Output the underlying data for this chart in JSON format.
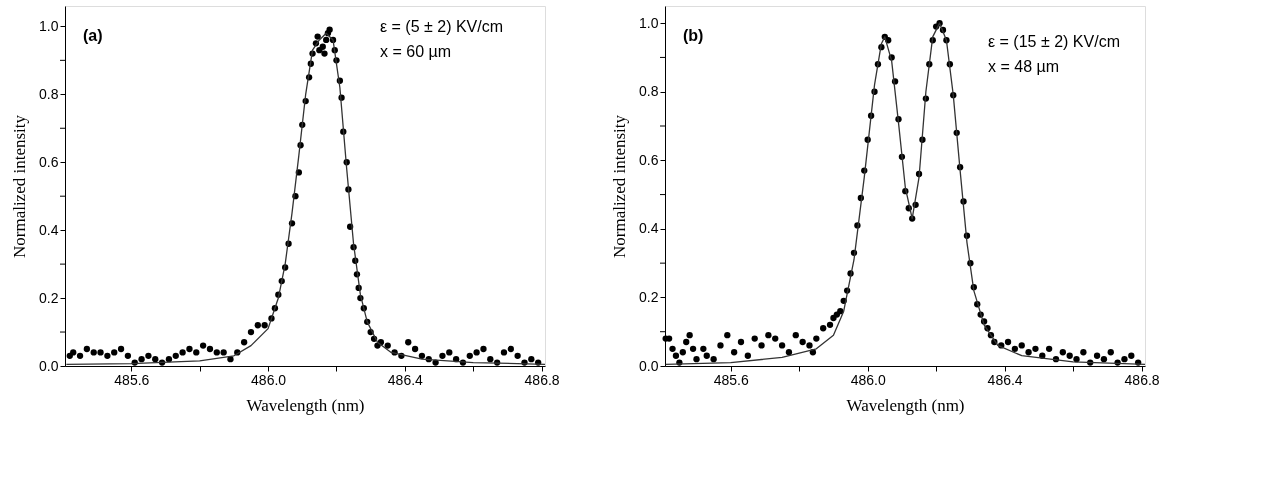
{
  "chart_data": [
    {
      "type": "scatter",
      "xlabel": "Wavelength (nm)",
      "ylabel": "Normalized intensity",
      "annotations": [
        "(a)",
        "ε = (5 ± 2) KV/cm",
        "x = 60 µm"
      ],
      "xlim": [
        485.406,
        486.81
      ],
      "ylim": [
        0,
        1.06
      ],
      "xticks": [
        485.6,
        {
          "value": 485.8,
          "label": null
        },
        {
          "value": 486.0,
          "label": "486.0"
        },
        {
          "value": 486.2,
          "label": null
        },
        486.4,
        {
          "value": 486.6,
          "label": null
        },
        486.8
      ],
      "yticks": [
        {
          "value": 0,
          "label": "0.0"
        },
        {
          "value": 0.1,
          "label": null
        },
        0.2,
        {
          "value": 0.3,
          "label": null
        },
        0.4,
        {
          "value": 0.5,
          "label": null
        },
        0.6,
        {
          "value": 0.7,
          "label": null
        },
        0.8,
        {
          "value": 0.9,
          "label": null
        },
        {
          "value": 1,
          "label": "1.0"
        }
      ],
      "grid": false,
      "legend": false,
      "series": [
        {
          "color": "#000000",
          "marker": "circle",
          "x": [
            485.42,
            485.43,
            485.45,
            485.47,
            485.49,
            485.51,
            485.53,
            485.55,
            485.57,
            485.59,
            485.61,
            485.63,
            485.65,
            485.67,
            485.69,
            485.71,
            485.73,
            485.75,
            485.77,
            485.79,
            485.81,
            485.83,
            485.85,
            485.87,
            485.89,
            485.91,
            485.93,
            485.95,
            485.97,
            485.99,
            486.01,
            486.02,
            486.03,
            486.04,
            486.05,
            486.06,
            486.07,
            486.08,
            486.09,
            486.095,
            486.1,
            486.11,
            486.12,
            486.125,
            486.13,
            486.14,
            486.145,
            486.15,
            486.16,
            486.165,
            486.17,
            486.175,
            486.18,
            486.19,
            486.195,
            486.2,
            486.21,
            486.215,
            486.22,
            486.23,
            486.235,
            486.24,
            486.25,
            486.255,
            486.26,
            486.265,
            486.27,
            486.28,
            486.29,
            486.3,
            486.31,
            486.32,
            486.33,
            486.35,
            486.37,
            486.39,
            486.41,
            486.43,
            486.45,
            486.47,
            486.49,
            486.51,
            486.53,
            486.55,
            486.57,
            486.59,
            486.61,
            486.63,
            486.65,
            486.67,
            486.69,
            486.71,
            486.73,
            486.75,
            486.77,
            486.79
          ],
          "values": [
            0.03,
            0.04,
            0.03,
            0.05,
            0.04,
            0.04,
            0.03,
            0.04,
            0.05,
            0.03,
            0.01,
            0.02,
            0.03,
            0.02,
            0.01,
            0.02,
            0.03,
            0.04,
            0.05,
            0.04,
            0.06,
            0.05,
            0.04,
            0.04,
            0.02,
            0.04,
            0.07,
            0.1,
            0.12,
            0.12,
            0.14,
            0.17,
            0.21,
            0.25,
            0.29,
            0.36,
            0.42,
            0.5,
            0.57,
            0.65,
            0.71,
            0.78,
            0.85,
            0.89,
            0.92,
            0.95,
            0.97,
            0.93,
            0.94,
            0.92,
            0.96,
            0.98,
            0.99,
            0.96,
            0.93,
            0.9,
            0.84,
            0.79,
            0.69,
            0.6,
            0.52,
            0.41,
            0.35,
            0.31,
            0.27,
            0.23,
            0.2,
            0.17,
            0.13,
            0.1,
            0.08,
            0.06,
            0.07,
            0.06,
            0.04,
            0.03,
            0.07,
            0.05,
            0.03,
            0.02,
            0.01,
            0.03,
            0.04,
            0.02,
            0.01,
            0.03,
            0.04,
            0.05,
            0.02,
            0.01,
            0.04,
            0.05,
            0.03,
            0.01,
            0.02,
            0.01
          ]
        },
        {
          "type": "line",
          "color": "#333333",
          "x": [
            485.41,
            485.6,
            485.8,
            485.9,
            485.95,
            486.0,
            486.03,
            486.05,
            486.07,
            486.09,
            486.11,
            486.13,
            486.15,
            486.17,
            486.19,
            486.21,
            486.23,
            486.25,
            486.27,
            486.29,
            486.32,
            486.36,
            486.45,
            486.6,
            486.81
          ],
          "values": [
            0.005,
            0.007,
            0.015,
            0.03,
            0.06,
            0.11,
            0.2,
            0.3,
            0.45,
            0.62,
            0.8,
            0.93,
            0.96,
            0.98,
            0.96,
            0.82,
            0.58,
            0.36,
            0.21,
            0.13,
            0.07,
            0.04,
            0.02,
            0.01,
            0.005
          ]
        }
      ]
    },
    {
      "type": "scatter",
      "xlabel": "Wavelength (nm)",
      "ylabel": "Normalized intensity",
      "annotations": [
        "(b)",
        "ε = (15 ± 2) KV/cm",
        "x = 48 µm"
      ],
      "xlim": [
        485.408,
        486.81
      ],
      "ylim": [
        0,
        1.05
      ],
      "xticks": [
        485.6,
        {
          "value": 485.8,
          "label": null
        },
        {
          "value": 486.0,
          "label": "486.0"
        },
        {
          "value": 486.2,
          "label": null
        },
        486.4,
        {
          "value": 486.6,
          "label": null
        },
        486.8
      ],
      "yticks": [
        {
          "value": 0,
          "label": "0.0"
        },
        {
          "value": 0.1,
          "label": null
        },
        0.2,
        {
          "value": 0.3,
          "label": null
        },
        0.4,
        {
          "value": 0.5,
          "label": null
        },
        0.6,
        {
          "value": 0.7,
          "label": null
        },
        0.8,
        {
          "value": 0.9,
          "label": null
        },
        {
          "value": 1,
          "label": "1.0"
        }
      ],
      "grid": false,
      "legend": false,
      "series": [
        {
          "color": "#000000",
          "marker": "circle",
          "x": [
            485.41,
            485.42,
            485.43,
            485.44,
            485.45,
            485.46,
            485.47,
            485.48,
            485.49,
            485.5,
            485.52,
            485.53,
            485.55,
            485.57,
            485.59,
            485.61,
            485.63,
            485.65,
            485.67,
            485.69,
            485.71,
            485.73,
            485.75,
            485.77,
            485.79,
            485.81,
            485.83,
            485.84,
            485.85,
            485.87,
            485.89,
            485.9,
            485.91,
            485.92,
            485.93,
            485.94,
            485.95,
            485.96,
            485.97,
            485.98,
            485.99,
            486.0,
            486.01,
            486.02,
            486.03,
            486.04,
            486.05,
            486.06,
            486.07,
            486.08,
            486.09,
            486.1,
            486.11,
            486.12,
            486.13,
            486.14,
            486.15,
            486.16,
            486.17,
            486.18,
            486.19,
            486.2,
            486.21,
            486.22,
            486.23,
            486.24,
            486.25,
            486.26,
            486.27,
            486.28,
            486.29,
            486.3,
            486.31,
            486.32,
            486.33,
            486.34,
            486.35,
            486.36,
            486.37,
            486.39,
            486.41,
            486.43,
            486.45,
            486.47,
            486.49,
            486.51,
            486.53,
            486.55,
            486.57,
            486.59,
            486.61,
            486.63,
            486.65,
            486.67,
            486.69,
            486.71,
            486.73,
            486.75,
            486.77,
            486.79
          ],
          "values": [
            0.08,
            0.08,
            0.05,
            0.03,
            0.01,
            0.04,
            0.07,
            0.09,
            0.05,
            0.02,
            0.05,
            0.03,
            0.02,
            0.06,
            0.09,
            0.04,
            0.07,
            0.03,
            0.08,
            0.06,
            0.09,
            0.08,
            0.06,
            0.04,
            0.09,
            0.07,
            0.06,
            0.04,
            0.08,
            0.11,
            0.12,
            0.14,
            0.15,
            0.16,
            0.19,
            0.22,
            0.27,
            0.33,
            0.41,
            0.49,
            0.57,
            0.66,
            0.73,
            0.8,
            0.88,
            0.93,
            0.96,
            0.95,
            0.9,
            0.83,
            0.72,
            0.61,
            0.51,
            0.46,
            0.43,
            0.47,
            0.56,
            0.66,
            0.78,
            0.88,
            0.95,
            0.99,
            1.0,
            0.98,
            0.95,
            0.88,
            0.79,
            0.68,
            0.58,
            0.48,
            0.38,
            0.3,
            0.23,
            0.18,
            0.15,
            0.13,
            0.11,
            0.09,
            0.07,
            0.06,
            0.07,
            0.05,
            0.06,
            0.04,
            0.05,
            0.03,
            0.05,
            0.02,
            0.04,
            0.03,
            0.02,
            0.04,
            0.01,
            0.03,
            0.02,
            0.04,
            0.01,
            0.02,
            0.03,
            0.01
          ]
        },
        {
          "type": "line",
          "color": "#333333",
          "x": [
            485.41,
            485.6,
            485.75,
            485.85,
            485.9,
            485.93,
            485.96,
            485.99,
            486.02,
            486.04,
            486.05,
            486.07,
            486.09,
            486.11,
            486.13,
            486.15,
            486.17,
            486.19,
            486.21,
            486.23,
            486.25,
            486.27,
            486.29,
            486.31,
            486.34,
            486.38,
            486.45,
            486.6,
            486.81
          ],
          "values": [
            0.005,
            0.01,
            0.025,
            0.05,
            0.09,
            0.16,
            0.31,
            0.55,
            0.82,
            0.94,
            0.96,
            0.89,
            0.71,
            0.52,
            0.43,
            0.55,
            0.8,
            0.96,
            1.0,
            0.95,
            0.79,
            0.57,
            0.36,
            0.22,
            0.12,
            0.06,
            0.03,
            0.012,
            0.005
          ]
        }
      ]
    }
  ]
}
